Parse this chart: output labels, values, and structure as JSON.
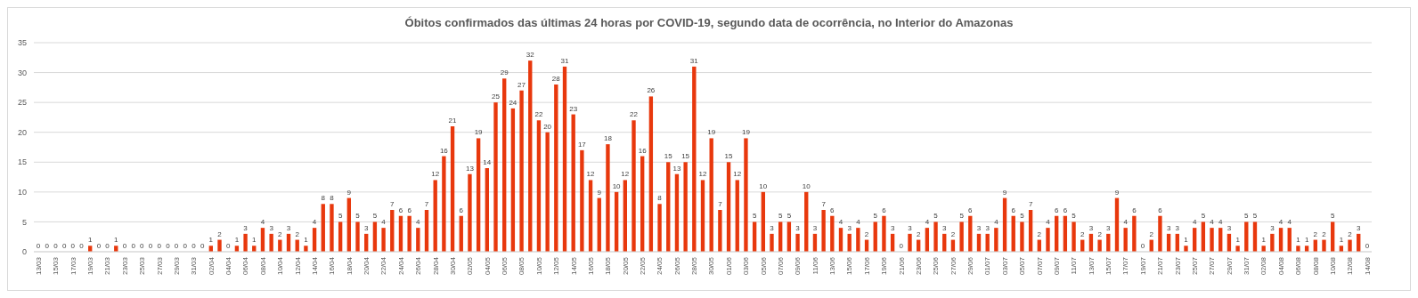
{
  "chart_data": {
    "type": "bar",
    "title": "Óbitos confirmados das últimas 24 horas por COVID-19, segundo data de ocorrência, no Interior do Amazonas",
    "categories": [
      "13/03",
      null,
      "15/03",
      null,
      "17/03",
      null,
      "19/03",
      null,
      "21/03",
      null,
      "23/03",
      null,
      "25/03",
      null,
      "27/03",
      null,
      "29/03",
      null,
      "31/03",
      null,
      "02/04",
      null,
      "04/04",
      null,
      "06/04",
      null,
      "08/04",
      null,
      "10/04",
      null,
      "12/04",
      null,
      "14/04",
      null,
      "16/04",
      null,
      "18/04",
      null,
      "20/04",
      null,
      "22/04",
      null,
      "24/04",
      null,
      "26/04",
      null,
      "28/04",
      null,
      "30/04",
      null,
      "02/05",
      null,
      "04/05",
      null,
      "06/05",
      null,
      "08/05",
      null,
      "10/05",
      null,
      "12/05",
      null,
      "14/05",
      null,
      "16/05",
      null,
      "18/05",
      null,
      "20/05",
      null,
      "22/05",
      null,
      "24/05",
      null,
      "26/05",
      null,
      "28/05",
      null,
      "30/05",
      null,
      "01/06",
      null,
      "03/06",
      null,
      "05/06",
      null,
      "07/06",
      null,
      "09/06",
      null,
      "11/06",
      null,
      "13/06",
      null,
      "15/06",
      null,
      "17/06",
      null,
      "19/06",
      null,
      "21/06",
      null,
      "23/06",
      null,
      "25/06",
      null,
      "27/06",
      null,
      "29/06",
      null,
      "01/07",
      null,
      "03/07",
      null,
      "05/07",
      null,
      "07/07",
      null,
      "09/07",
      null,
      "11/07",
      null,
      "13/07",
      null,
      "15/07",
      null,
      "17/07",
      null,
      "19/07",
      null,
      "21/07",
      null,
      "23/07",
      null,
      "25/07",
      null,
      "27/07",
      null,
      "29/07",
      null,
      "31/07",
      null,
      "02/08",
      null,
      "04/08",
      null,
      "06/08",
      null,
      "08/08",
      null,
      "10/08",
      null,
      "12/08",
      null,
      "14/08"
    ],
    "values": [
      0,
      0,
      0,
      0,
      0,
      0,
      1,
      0,
      0,
      1,
      0,
      0,
      0,
      0,
      0,
      0,
      0,
      0,
      0,
      0,
      1,
      2,
      0,
      1,
      3,
      1,
      4,
      3,
      2,
      3,
      2,
      1,
      4,
      8,
      8,
      5,
      9,
      5,
      3,
      5,
      4,
      7,
      6,
      6,
      4,
      7,
      12,
      16,
      21,
      6,
      13,
      19,
      14,
      25,
      29,
      24,
      27,
      32,
      22,
      20,
      28,
      31,
      23,
      17,
      12,
      9,
      18,
      10,
      12,
      22,
      16,
      26,
      8,
      15,
      13,
      15,
      31,
      12,
      19,
      7,
      15,
      12,
      19,
      5,
      10,
      3,
      5,
      5,
      3,
      10,
      3,
      7,
      6,
      4,
      3,
      4,
      2,
      5,
      6,
      3,
      0,
      3,
      2,
      4,
      5,
      3,
      2,
      5,
      6,
      3,
      3,
      4,
      9,
      6,
      5,
      7,
      2,
      4,
      6,
      6,
      5,
      2,
      3,
      2,
      3,
      9,
      4,
      6,
      0,
      2,
      6,
      3,
      3,
      1,
      4,
      5,
      4,
      4,
      3,
      1,
      5,
      5,
      1,
      3,
      4,
      4,
      1,
      1,
      2,
      2,
      5,
      1,
      2,
      3,
      0
    ],
    "color": "#e8380d",
    "ylim": [
      0,
      35
    ],
    "yticks": [
      0,
      5,
      10,
      15,
      20,
      25,
      30,
      35
    ],
    "grid": "y",
    "data_labels": true
  }
}
